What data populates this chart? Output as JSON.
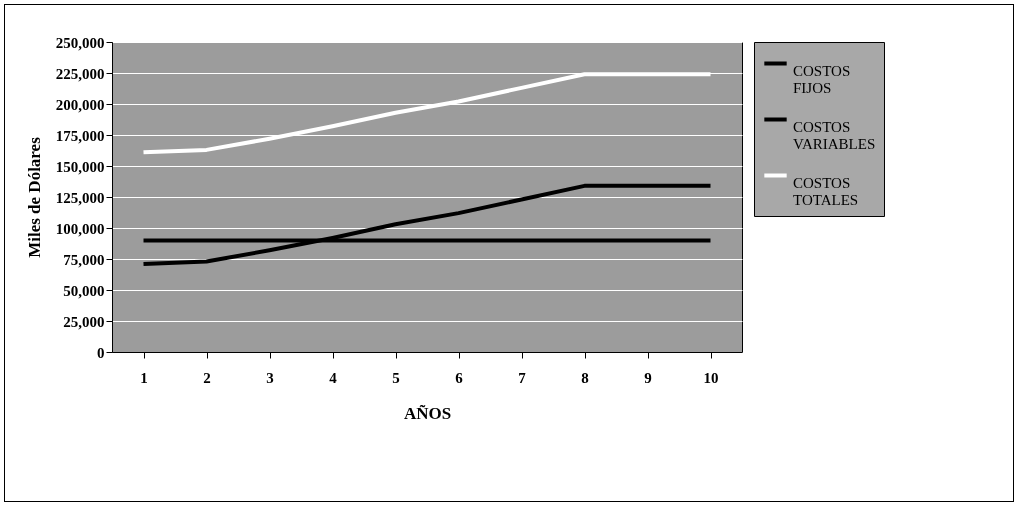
{
  "chart_data": {
    "type": "line",
    "xlabel": "AÑOS",
    "ylabel": "Miles de Dólares",
    "categories": [
      "1",
      "2",
      "3",
      "4",
      "5",
      "6",
      "7",
      "8",
      "9",
      "10"
    ],
    "series": [
      {
        "name": "COSTOS FIJOS",
        "color": "#000000",
        "values": [
          90000,
          90000,
          90000,
          90000,
          90000,
          90000,
          90000,
          90000,
          90000,
          90000
        ]
      },
      {
        "name": "COSTOS VARIABLES",
        "color": "#000000",
        "values": [
          71000,
          73000,
          82000,
          92000,
          103000,
          112000,
          123000,
          134000,
          134000,
          134000
        ]
      },
      {
        "name": "COSTOS TOTALES",
        "color": "#ffffff",
        "values": [
          161000,
          163000,
          172000,
          182000,
          193000,
          202000,
          213000,
          224000,
          224000,
          224000
        ]
      }
    ],
    "ylim": [
      0,
      250000
    ],
    "yticks": [
      0,
      {
        "value": 25000,
        "label": "25,000"
      },
      {
        "value": 50000,
        "label": "50,000"
      },
      {
        "value": 75000,
        "label": "75,000"
      },
      {
        "value": 100000,
        "label": "100,000"
      },
      {
        "value": 125000,
        "label": "125,000"
      },
      {
        "value": 150000,
        "label": "150,000"
      },
      {
        "value": 175000,
        "label": "175,000"
      },
      {
        "value": 200000,
        "label": "200,000"
      },
      {
        "value": 225000,
        "label": "225,000"
      },
      {
        "value": 250000,
        "label": "250,000"
      }
    ],
    "grid": "y",
    "legend": "right",
    "marker": "none",
    "line_style": "solid"
  }
}
